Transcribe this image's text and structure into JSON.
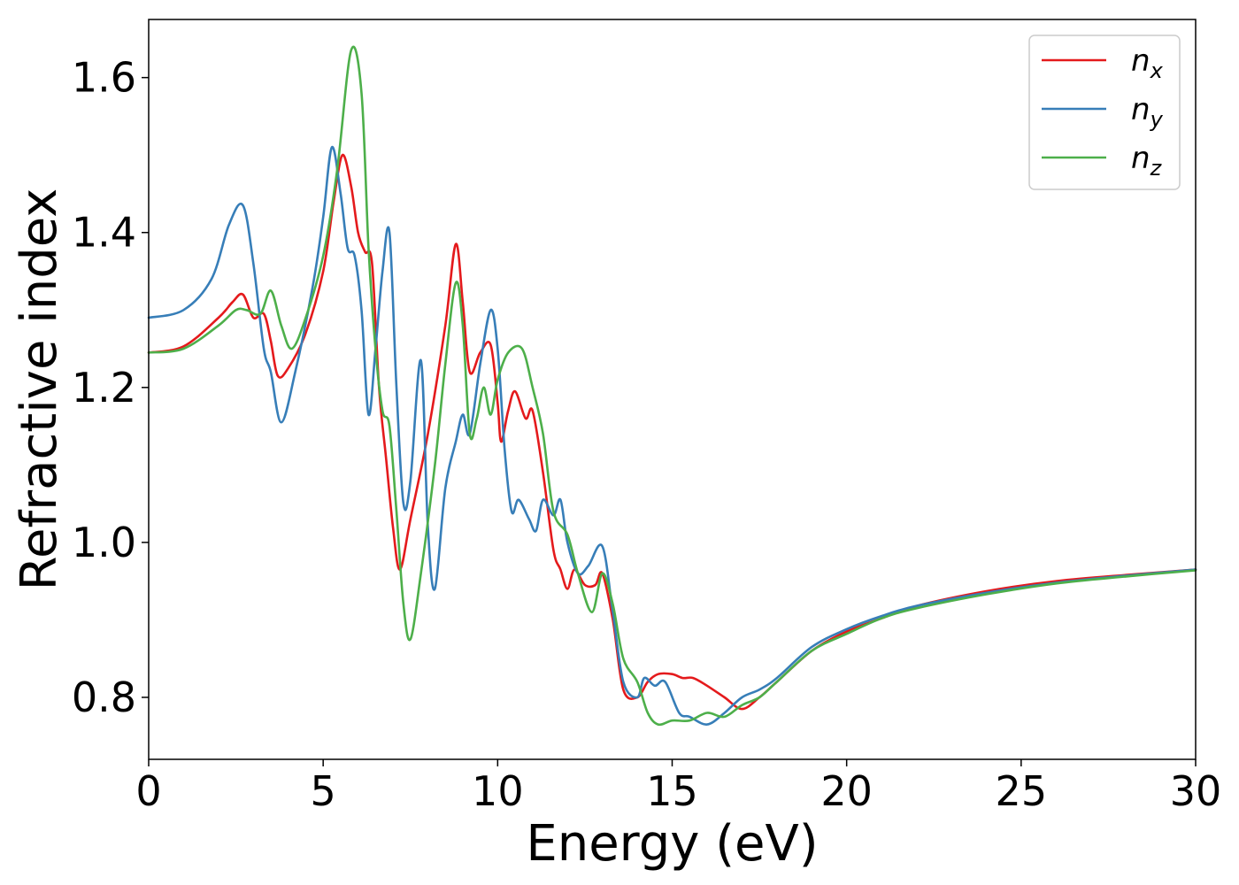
{
  "chart_data": {
    "type": "line",
    "title": "",
    "xlabel": "Energy (eV)",
    "ylabel": "Refractive index",
    "xlim": [
      0,
      30
    ],
    "ylim": [
      0.72,
      1.675
    ],
    "xticks": [
      0,
      5,
      10,
      15,
      20,
      25,
      30
    ],
    "xtick_labels": [
      "0",
      "5",
      "10",
      "15",
      "20",
      "25",
      "30"
    ],
    "yticks": [
      0.8,
      1.0,
      1.2,
      1.4,
      1.6
    ],
    "ytick_labels": [
      "0.8",
      "1.0",
      "1.2",
      "1.4",
      "1.6"
    ],
    "grid": false,
    "legend_position": "top-right",
    "series": [
      {
        "name": "n_x",
        "label_base": "n",
        "label_sub": "x",
        "color": "#e41a1c",
        "points": [
          [
            0,
            1.245
          ],
          [
            1,
            1.253
          ],
          [
            2,
            1.29
          ],
          [
            2.4,
            1.31
          ],
          [
            2.7,
            1.32
          ],
          [
            3.0,
            1.29
          ],
          [
            3.3,
            1.295
          ],
          [
            3.5,
            1.26
          ],
          [
            3.7,
            1.215
          ],
          [
            4.0,
            1.225
          ],
          [
            4.5,
            1.27
          ],
          [
            5.0,
            1.35
          ],
          [
            5.3,
            1.44
          ],
          [
            5.55,
            1.5
          ],
          [
            5.8,
            1.46
          ],
          [
            6.0,
            1.4
          ],
          [
            6.2,
            1.375
          ],
          [
            6.4,
            1.36
          ],
          [
            6.6,
            1.2
          ],
          [
            6.8,
            1.11
          ],
          [
            7.0,
            1.02
          ],
          [
            7.2,
            0.965
          ],
          [
            7.5,
            1.03
          ],
          [
            8.0,
            1.14
          ],
          [
            8.5,
            1.28
          ],
          [
            8.8,
            1.385
          ],
          [
            9.0,
            1.31
          ],
          [
            9.2,
            1.22
          ],
          [
            9.5,
            1.245
          ],
          [
            9.8,
            1.255
          ],
          [
            10.0,
            1.18
          ],
          [
            10.1,
            1.13
          ],
          [
            10.3,
            1.17
          ],
          [
            10.5,
            1.195
          ],
          [
            10.8,
            1.16
          ],
          [
            11.0,
            1.17
          ],
          [
            11.3,
            1.09
          ],
          [
            11.6,
            0.99
          ],
          [
            11.8,
            0.965
          ],
          [
            12.0,
            0.94
          ],
          [
            12.2,
            0.965
          ],
          [
            12.5,
            0.945
          ],
          [
            12.8,
            0.945
          ],
          [
            13.0,
            0.96
          ],
          [
            13.3,
            0.9
          ],
          [
            13.6,
            0.81
          ],
          [
            14.0,
            0.8
          ],
          [
            14.3,
            0.82
          ],
          [
            14.6,
            0.83
          ],
          [
            15.0,
            0.83
          ],
          [
            15.3,
            0.825
          ],
          [
            15.6,
            0.825
          ],
          [
            16.0,
            0.815
          ],
          [
            16.5,
            0.8
          ],
          [
            17.0,
            0.785
          ],
          [
            17.5,
            0.8
          ],
          [
            18.0,
            0.82
          ],
          [
            19.0,
            0.86
          ],
          [
            20.0,
            0.885
          ],
          [
            21.0,
            0.902
          ],
          [
            22.0,
            0.918
          ],
          [
            24.0,
            0.937
          ],
          [
            26.0,
            0.95
          ],
          [
            28.0,
            0.958
          ],
          [
            30.0,
            0.965
          ]
        ]
      },
      {
        "name": "n_y",
        "label_base": "n",
        "label_sub": "y",
        "color": "#377eb8",
        "points": [
          [
            0,
            1.29
          ],
          [
            1,
            1.3
          ],
          [
            1.8,
            1.34
          ],
          [
            2.3,
            1.41
          ],
          [
            2.7,
            1.435
          ],
          [
            3.0,
            1.36
          ],
          [
            3.3,
            1.25
          ],
          [
            3.5,
            1.22
          ],
          [
            3.8,
            1.155
          ],
          [
            4.2,
            1.22
          ],
          [
            4.7,
            1.33
          ],
          [
            5.0,
            1.42
          ],
          [
            5.25,
            1.51
          ],
          [
            5.5,
            1.45
          ],
          [
            5.7,
            1.38
          ],
          [
            5.9,
            1.37
          ],
          [
            6.1,
            1.3
          ],
          [
            6.3,
            1.165
          ],
          [
            6.5,
            1.25
          ],
          [
            6.7,
            1.35
          ],
          [
            6.9,
            1.4
          ],
          [
            7.1,
            1.2
          ],
          [
            7.3,
            1.05
          ],
          [
            7.5,
            1.08
          ],
          [
            7.8,
            1.235
          ],
          [
            8.0,
            1.02
          ],
          [
            8.2,
            0.94
          ],
          [
            8.5,
            1.07
          ],
          [
            8.8,
            1.13
          ],
          [
            9.0,
            1.165
          ],
          [
            9.2,
            1.14
          ],
          [
            9.5,
            1.23
          ],
          [
            9.8,
            1.3
          ],
          [
            10.0,
            1.25
          ],
          [
            10.2,
            1.12
          ],
          [
            10.4,
            1.04
          ],
          [
            10.6,
            1.055
          ],
          [
            10.9,
            1.03
          ],
          [
            11.1,
            1.015
          ],
          [
            11.3,
            1.055
          ],
          [
            11.6,
            1.035
          ],
          [
            11.8,
            1.055
          ],
          [
            12.0,
            1.0
          ],
          [
            12.3,
            0.96
          ],
          [
            12.6,
            0.97
          ],
          [
            13.0,
            0.995
          ],
          [
            13.3,
            0.91
          ],
          [
            13.6,
            0.82
          ],
          [
            14.0,
            0.8
          ],
          [
            14.2,
            0.825
          ],
          [
            14.5,
            0.815
          ],
          [
            14.8,
            0.82
          ],
          [
            15.2,
            0.78
          ],
          [
            15.5,
            0.775
          ],
          [
            16.0,
            0.765
          ],
          [
            16.5,
            0.78
          ],
          [
            17.0,
            0.8
          ],
          [
            17.5,
            0.81
          ],
          [
            18.0,
            0.825
          ],
          [
            19.0,
            0.865
          ],
          [
            20.0,
            0.888
          ],
          [
            21.0,
            0.905
          ],
          [
            22.0,
            0.918
          ],
          [
            24.0,
            0.935
          ],
          [
            26.0,
            0.948
          ],
          [
            28.0,
            0.957
          ],
          [
            30.0,
            0.965
          ]
        ]
      },
      {
        "name": "n_z",
        "label_base": "n",
        "label_sub": "z",
        "color": "#4daf4a",
        "points": [
          [
            0,
            1.245
          ],
          [
            1,
            1.25
          ],
          [
            2,
            1.28
          ],
          [
            2.5,
            1.3
          ],
          [
            2.8,
            1.3
          ],
          [
            3.2,
            1.295
          ],
          [
            3.5,
            1.325
          ],
          [
            3.8,
            1.28
          ],
          [
            4.1,
            1.25
          ],
          [
            4.5,
            1.29
          ],
          [
            5.0,
            1.37
          ],
          [
            5.4,
            1.48
          ],
          [
            5.8,
            1.635
          ],
          [
            6.1,
            1.58
          ],
          [
            6.3,
            1.38
          ],
          [
            6.5,
            1.25
          ],
          [
            6.7,
            1.17
          ],
          [
            6.9,
            1.15
          ],
          [
            7.1,
            1.04
          ],
          [
            7.3,
            0.92
          ],
          [
            7.5,
            0.875
          ],
          [
            7.8,
            0.96
          ],
          [
            8.2,
            1.1
          ],
          [
            8.5,
            1.23
          ],
          [
            8.8,
            1.335
          ],
          [
            9.0,
            1.28
          ],
          [
            9.2,
            1.14
          ],
          [
            9.4,
            1.16
          ],
          [
            9.6,
            1.2
          ],
          [
            9.8,
            1.165
          ],
          [
            10.0,
            1.21
          ],
          [
            10.3,
            1.245
          ],
          [
            10.7,
            1.25
          ],
          [
            11.0,
            1.2
          ],
          [
            11.3,
            1.14
          ],
          [
            11.6,
            1.04
          ],
          [
            12.0,
            1.01
          ],
          [
            12.3,
            0.96
          ],
          [
            12.7,
            0.91
          ],
          [
            13.0,
            0.96
          ],
          [
            13.3,
            0.92
          ],
          [
            13.6,
            0.85
          ],
          [
            14.0,
            0.82
          ],
          [
            14.3,
            0.78
          ],
          [
            14.6,
            0.765
          ],
          [
            15.0,
            0.77
          ],
          [
            15.5,
            0.77
          ],
          [
            16.0,
            0.78
          ],
          [
            16.5,
            0.775
          ],
          [
            17.0,
            0.79
          ],
          [
            17.5,
            0.8
          ],
          [
            18.0,
            0.82
          ],
          [
            19.0,
            0.86
          ],
          [
            20.0,
            0.882
          ],
          [
            21.0,
            0.902
          ],
          [
            22.0,
            0.915
          ],
          [
            24.0,
            0.933
          ],
          [
            26.0,
            0.947
          ],
          [
            28.0,
            0.956
          ],
          [
            30.0,
            0.964
          ]
        ]
      }
    ]
  }
}
